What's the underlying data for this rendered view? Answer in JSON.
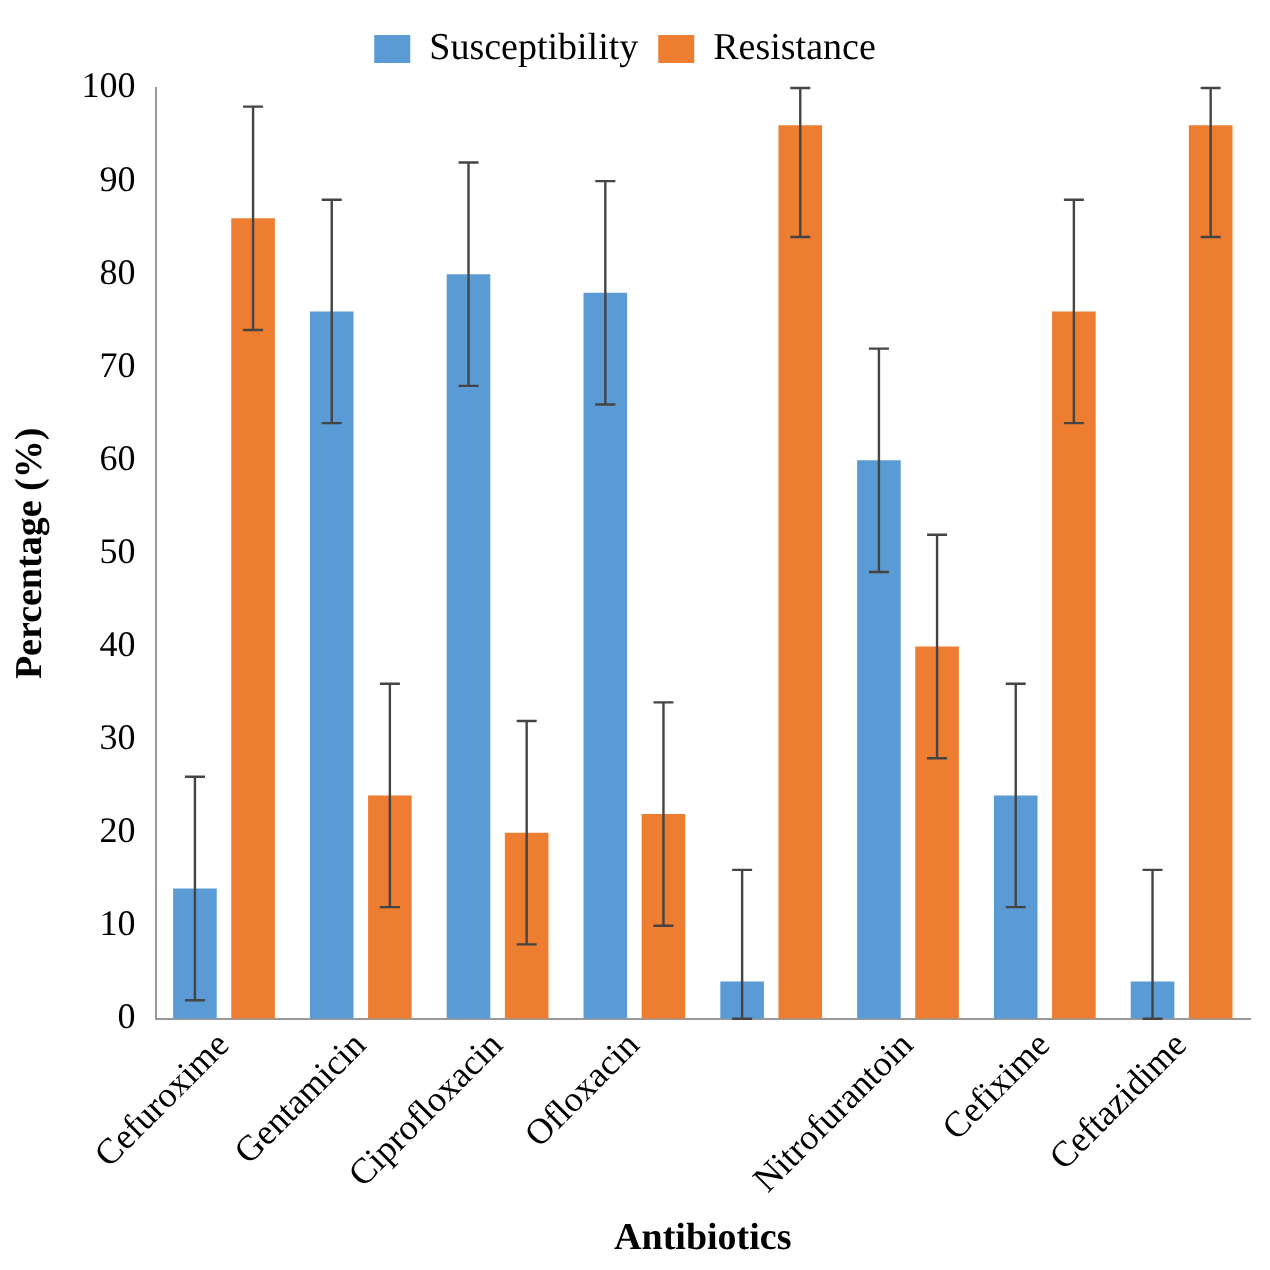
{
  "chart_data": {
    "type": "bar",
    "xlabel": "Antibiotics",
    "ylabel": "Percentage (%)",
    "categories": [
      "Cefuroxime",
      "Gentamicin",
      "Ciprofloxacin",
      "Ofloxacin",
      null,
      "Nitrofurantoin",
      "Cefixime",
      "Ceftazidime"
    ],
    "series": [
      {
        "name": "Susceptibility",
        "color": "#5b9bd5",
        "values": [
          14,
          76,
          80,
          78,
          4,
          60,
          24,
          4
        ],
        "errors": [
          12,
          12,
          12,
          12,
          [
            0,
            16
          ],
          12,
          12,
          [
            0,
            16
          ]
        ]
      },
      {
        "name": "Resistance",
        "color": "#ed7d31",
        "values": [
          86,
          24,
          20,
          22,
          96,
          40,
          76,
          96
        ],
        "errors": [
          12,
          12,
          12,
          12,
          [
            84,
            100
          ],
          12,
          12,
          [
            84,
            100
          ]
        ]
      }
    ],
    "ylim": [
      0,
      100
    ],
    "yticks": [
      0,
      10,
      20,
      30,
      40,
      50,
      60,
      70,
      80,
      90,
      100
    ],
    "grid": false,
    "legend": "top"
  }
}
